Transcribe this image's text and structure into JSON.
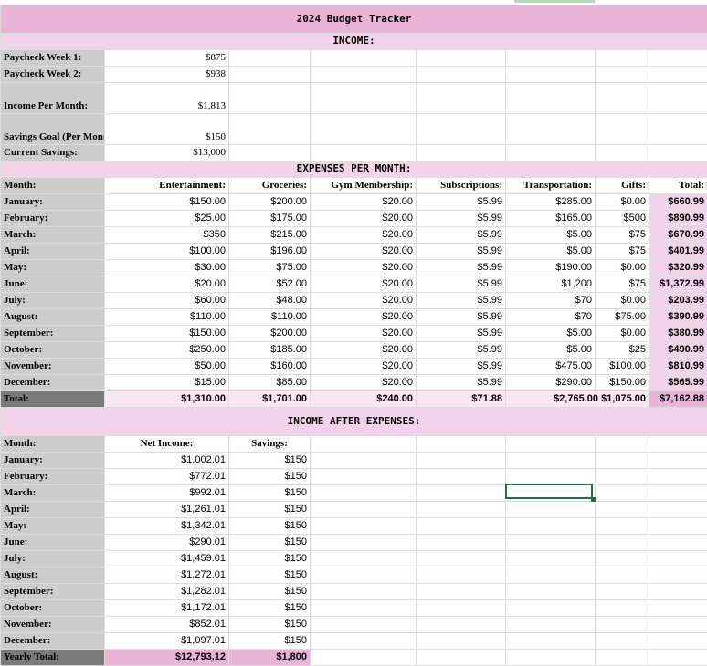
{
  "title": "2024 Budget Tracker",
  "income_header": "INCOME:",
  "income": [
    {
      "label": "Paycheck Week 1:",
      "value": "$875"
    },
    {
      "label": "Paycheck Week 2:",
      "value": "$938"
    },
    {
      "label": "Income Per Month:",
      "value": "$1,813"
    },
    {
      "label": "Savings Goal (Per Month) :",
      "value": "$150"
    },
    {
      "label": "Current Savings:",
      "value": "$13,000"
    }
  ],
  "expenses_header": "EXPENSES PER MONTH:",
  "expenses_columns": [
    "Month:",
    "Entertainment:",
    "Groceries:",
    "Gym Membership:",
    "Subscriptions:",
    "Transportation:",
    "Gifts:",
    "Total:"
  ],
  "expenses_rows": [
    [
      "January:",
      "$150.00",
      "$200.00",
      "$20.00",
      "$5.99",
      "$285.00",
      "$0.00",
      "$660.99"
    ],
    [
      "February:",
      "$25.00",
      "$175.00",
      "$20.00",
      "$5.99",
      "$165.00",
      "$500",
      "$890.99"
    ],
    [
      "March:",
      "$350",
      "$215.00",
      "$20.00",
      "$5.99",
      "$5.00",
      "$75",
      "$670.99"
    ],
    [
      "April:",
      "$100.00",
      "$196.00",
      "$20.00",
      "$5.99",
      "$5.00",
      "$75",
      "$401.99"
    ],
    [
      "May:",
      "$30.00",
      "$75.00",
      "$20.00",
      "$5.99",
      "$190.00",
      "$0.00",
      "$320.99"
    ],
    [
      "June:",
      "$20.00",
      "$52.00",
      "$20.00",
      "$5.99",
      "$1,200",
      "$75",
      "$1,372.99"
    ],
    [
      "July:",
      "$60.00",
      "$48.00",
      "$20.00",
      "$5.99",
      "$70",
      "$0.00",
      "$203.99"
    ],
    [
      "August:",
      "$110.00",
      "$110.00",
      "$20.00",
      "$5.99",
      "$70",
      "$75.00",
      "$390.99"
    ],
    [
      "September:",
      "$150.00",
      "$200.00",
      "$20.00",
      "$5.99",
      "$5.00",
      "$0.00",
      "$380.99"
    ],
    [
      "October:",
      "$250.00",
      "$185.00",
      "$20.00",
      "$5.99",
      "$5.00",
      "$25",
      "$490.99"
    ],
    [
      "November:",
      "$50.00",
      "$160.00",
      "$20.00",
      "$5.99",
      "$475.00",
      "$100.00",
      "$810.99"
    ],
    [
      "December:",
      "$15.00",
      "$85.00",
      "$20.00",
      "$5.99",
      "$290.00",
      "$150.00",
      "$565.99"
    ]
  ],
  "expenses_total": [
    "Total:",
    "$1,310.00",
    "$1,701.00",
    "$240.00",
    "$71.88",
    "$2,765.00",
    "$1,075.00",
    "$7,162.88"
  ],
  "after_header": "INCOME AFTER EXPENSES:",
  "after_columns": [
    "Month:",
    "Net Income:",
    "Savings:"
  ],
  "after_rows": [
    [
      "January:",
      "$1,002.01",
      "$150"
    ],
    [
      "February:",
      "$772.01",
      "$150"
    ],
    [
      "March:",
      "$992.01",
      "$150"
    ],
    [
      "April:",
      "$1,261.01",
      "$150"
    ],
    [
      "May:",
      "$1,342.01",
      "$150"
    ],
    [
      "June:",
      "$290.01",
      "$150"
    ],
    [
      "July:",
      "$1,459.01",
      "$150"
    ],
    [
      "August:",
      "$1,272.01",
      "$150"
    ],
    [
      "September:",
      "$1,282.01",
      "$150"
    ],
    [
      "October:",
      "$1,172.01",
      "$150"
    ],
    [
      "November:",
      "$852.01",
      "$150"
    ],
    [
      "December:",
      "$1,097.01",
      "$150"
    ]
  ],
  "after_total": [
    "Yearly Total:",
    "$12,793.12",
    "$1,800"
  ],
  "colors": {
    "header_pink": "#eab3d8",
    "light_pink": "#f3d3e9",
    "label_gray": "#cccccc",
    "total_dark": "#7a7a7a",
    "selection": "#1e7145"
  }
}
